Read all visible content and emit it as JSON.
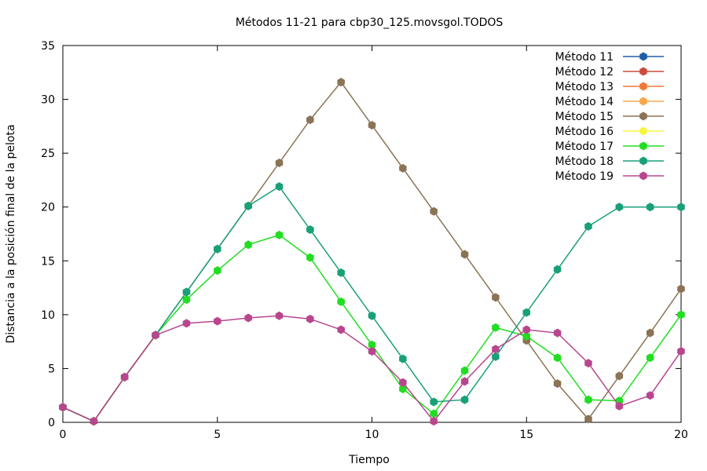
{
  "chart_data": {
    "type": "line",
    "title": "Métodos 11-21 para cbp30_125.movsgol.TODOS",
    "xlabel": "Tiempo",
    "ylabel": "Distancia a la posición final de la pelota",
    "xlim": [
      0,
      20
    ],
    "ylim": [
      0,
      35
    ],
    "xticks": [
      0,
      5,
      10,
      15,
      20
    ],
    "yticks": [
      0,
      5,
      10,
      15,
      20,
      25,
      30,
      35
    ],
    "legend_position": "top-right",
    "grid": false,
    "x": [
      0,
      1,
      2,
      3,
      4,
      5,
      6,
      7,
      8,
      9,
      10,
      11,
      12,
      13,
      14,
      15,
      16,
      17,
      18,
      19,
      20
    ],
    "series": [
      {
        "name": "Método 11",
        "color": "#1f5fa8",
        "values": [
          1.4,
          0.1,
          4.2,
          8.1,
          null,
          null,
          null,
          null,
          null,
          null,
          null,
          null,
          null,
          null,
          null,
          null,
          null,
          null,
          null,
          null,
          null
        ]
      },
      {
        "name": "Método 12",
        "color": "#cc4b3c",
        "values": [
          1.4,
          0.1,
          4.2,
          8.1,
          null,
          null,
          null,
          null,
          null,
          null,
          null,
          null,
          null,
          null,
          null,
          null,
          null,
          null,
          null,
          null,
          null
        ]
      },
      {
        "name": "Método 13",
        "color": "#f07a35",
        "values": [
          1.4,
          0.1,
          4.2,
          8.1,
          null,
          null,
          null,
          null,
          null,
          null,
          null,
          null,
          null,
          null,
          null,
          null,
          null,
          null,
          null,
          null,
          null
        ]
      },
      {
        "name": "Método 14",
        "color": "#f7a94a",
        "values": [
          1.4,
          0.1,
          4.2,
          8.1,
          null,
          null,
          null,
          null,
          null,
          null,
          null,
          null,
          null,
          null,
          null,
          null,
          null,
          null,
          null,
          null,
          null
        ]
      },
      {
        "name": "Método 15",
        "color": "#8b7355",
        "values": [
          1.4,
          0.1,
          4.2,
          8.1,
          12.1,
          16.1,
          20.1,
          24.1,
          28.1,
          31.6,
          27.6,
          23.6,
          19.6,
          15.6,
          11.6,
          7.6,
          3.6,
          0.3,
          4.3,
          8.3,
          12.4
        ]
      },
      {
        "name": "Método 16",
        "color": "#f5f542",
        "values": [
          1.4,
          0.1,
          4.2,
          8.1,
          null,
          null,
          null,
          null,
          null,
          null,
          null,
          null,
          null,
          null,
          null,
          null,
          null,
          null,
          null,
          null,
          null
        ]
      },
      {
        "name": "Método 17",
        "color": "#22dd22",
        "values": [
          1.4,
          0.1,
          4.2,
          8.1,
          11.4,
          14.1,
          16.5,
          17.4,
          15.3,
          11.2,
          7.2,
          3.1,
          0.8,
          4.8,
          8.8,
          8.0,
          6.0,
          2.1,
          2.0,
          6.0,
          10.0
        ]
      },
      {
        "name": "Método 18",
        "color": "#18a078",
        "values": [
          1.4,
          0.1,
          4.2,
          8.1,
          12.1,
          16.1,
          20.1,
          21.9,
          17.9,
          13.9,
          9.9,
          5.9,
          1.9,
          2.1,
          6.1,
          10.2,
          14.2,
          18.2,
          20.0,
          20.0,
          20.0
        ]
      },
      {
        "name": "Método 19",
        "color": "#b8468e",
        "values": [
          1.4,
          0.1,
          4.2,
          8.1,
          9.2,
          9.4,
          9.7,
          9.9,
          9.6,
          8.6,
          6.6,
          3.7,
          0.1,
          3.8,
          6.8,
          8.6,
          8.3,
          5.5,
          1.5,
          2.5,
          6.6
        ]
      }
    ]
  }
}
